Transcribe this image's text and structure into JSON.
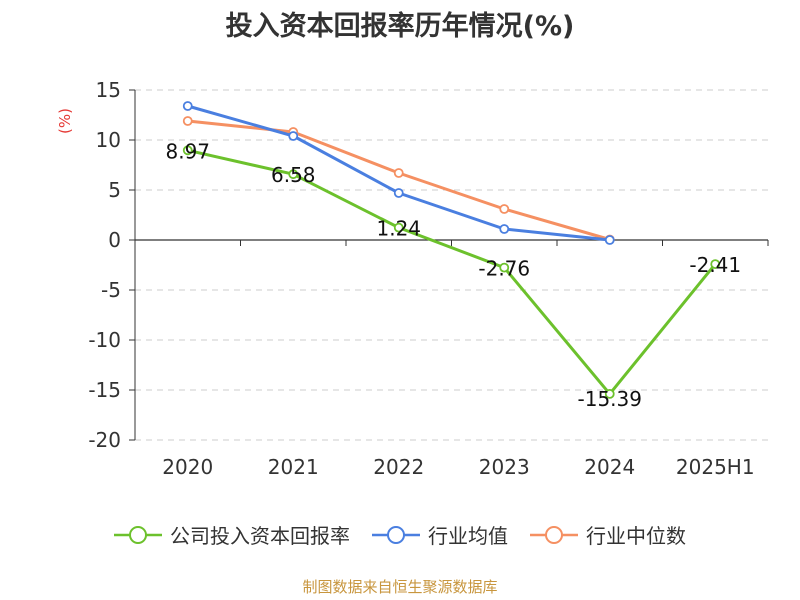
{
  "title": "投入资本回报率历年情况(%)",
  "unit_label": "(%)",
  "source": "制图数据来自恒生聚源数据库",
  "colors": {
    "company": "#6cc12c",
    "industry_avg": "#4a7fe0",
    "industry_median": "#f59062",
    "axis": "#333333",
    "grid": "#cccccc",
    "unit": "#e53935",
    "source": "#c8963e"
  },
  "chart_data": {
    "type": "line",
    "title": "投入资本回报率历年情况(%)",
    "ylabel": "(%)",
    "xlabel": "",
    "categories": [
      "2020",
      "2021",
      "2022",
      "2023",
      "2024",
      "2025H1"
    ],
    "ylim": [
      -20,
      15
    ],
    "yticks": [
      15,
      10,
      5,
      0,
      -5,
      -10,
      -15,
      -20
    ],
    "grid": "horizontal dashed",
    "legend_position": "bottom",
    "series": [
      {
        "name": "公司投入资本回报率",
        "color": "#6cc12c",
        "values": [
          8.97,
          6.58,
          1.24,
          -2.76,
          -15.39,
          -2.41
        ],
        "labels": [
          "8.97",
          "6.58",
          "1.24",
          "-2.76",
          "-15.39",
          "-2.41"
        ]
      },
      {
        "name": "行业均值",
        "color": "#4a7fe0",
        "values": [
          13.4,
          10.4,
          4.7,
          1.1,
          0.0,
          null
        ]
      },
      {
        "name": "行业中位数",
        "color": "#f59062",
        "values": [
          11.9,
          10.8,
          6.7,
          3.1,
          0.05,
          null
        ]
      }
    ]
  }
}
